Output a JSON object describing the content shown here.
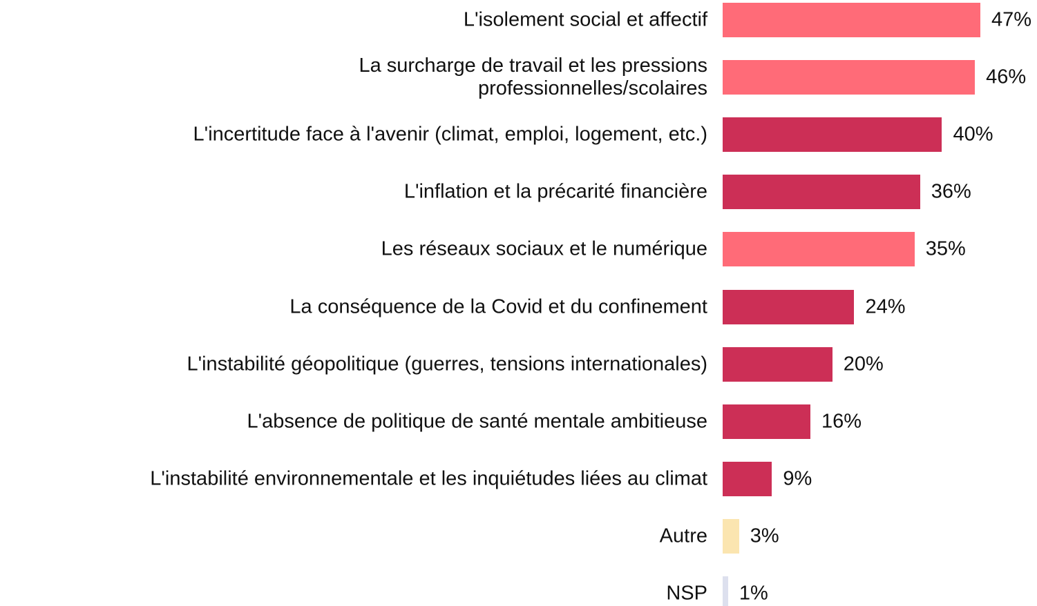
{
  "chart_data": {
    "type": "bar",
    "orientation": "horizontal",
    "categories": [
      "L'isolement social et affectif",
      "La surcharge de travail et les pressions\nprofessionnelles/scolaires",
      "L'incertitude face à l'avenir (climat, emploi, logement, etc.)",
      "L'inflation et la précarité financière",
      "Les réseaux sociaux et le numérique",
      "La conséquence de la Covid et du confinement",
      "L'instabilité géopolitique (guerres, tensions internationales)",
      "L'absence de politique de santé mentale ambitieuse",
      "L'instabilité environnementale et les inquiétudes liées au climat",
      "Autre",
      "NSP"
    ],
    "values": [
      47,
      46,
      40,
      36,
      35,
      24,
      20,
      16,
      9,
      3,
      1
    ],
    "value_labels": [
      "47%",
      "46%",
      "40%",
      "36%",
      "35%",
      "24%",
      "20%",
      "16%",
      "9%",
      "3%",
      "1%"
    ],
    "colors": [
      "#ff6b78",
      "#ff6b78",
      "#cc2f56",
      "#cc2f56",
      "#ff6b78",
      "#cc2f56",
      "#cc2f56",
      "#cc2f56",
      "#cc2f56",
      "#fbe5b0",
      "#dde0ee"
    ]
  }
}
